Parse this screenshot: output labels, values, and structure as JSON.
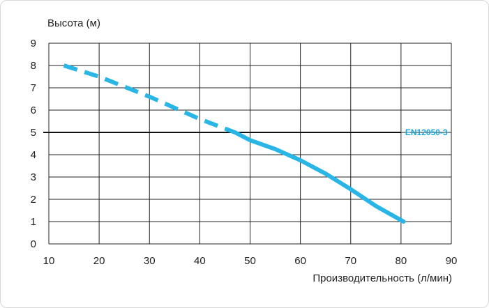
{
  "chart_data": {
    "type": "line",
    "ylabel": "Высота (м)",
    "xlabel": "Производительность (л/мин)",
    "xlim": [
      10,
      90
    ],
    "ylim": [
      0,
      9
    ],
    "x_ticks": [
      "10",
      "20",
      "30",
      "40",
      "50",
      "60",
      "70",
      "80",
      "90"
    ],
    "y_ticks": [
      "0",
      "1",
      "2",
      "3",
      "4",
      "5",
      "6",
      "7",
      "8",
      "9"
    ],
    "grid": true,
    "series": [
      {
        "style": "dashed",
        "color": "#29b6e6",
        "x": [
          13,
          20,
          30,
          40,
          47
        ],
        "y": [
          8.0,
          7.5,
          6.6,
          5.6,
          5.0
        ]
      },
      {
        "style": "solid",
        "color": "#29b6e6",
        "x": [
          47,
          50,
          55,
          60,
          65,
          70,
          75,
          80.5
        ],
        "y": [
          5.0,
          4.65,
          4.25,
          3.75,
          3.15,
          2.45,
          1.7,
          1.0
        ]
      }
    ],
    "reference_line": {
      "label": "EN12050-3",
      "y": 5,
      "x_start": 10,
      "x_end": 80,
      "color": "#111111",
      "label_color": "#1aa6d9"
    }
  }
}
